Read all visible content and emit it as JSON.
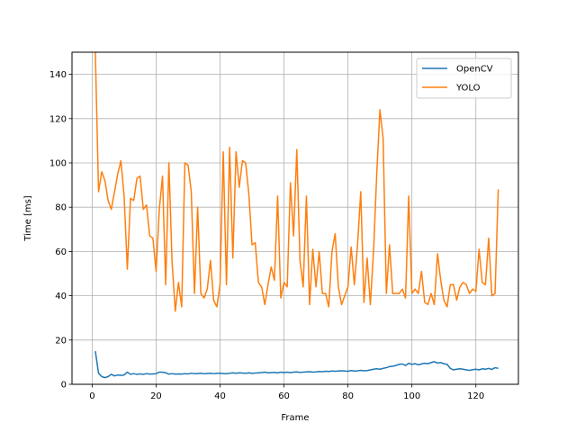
{
  "chart_data": {
    "type": "line",
    "title": "",
    "xlabel": "Frame",
    "ylabel": "Time [ms]",
    "xlim": [
      -6.3,
      133.3
    ],
    "ylim": [
      0,
      150
    ],
    "xticks": [
      0,
      20,
      40,
      60,
      80,
      100,
      120
    ],
    "yticks": [
      0,
      20,
      40,
      60,
      80,
      100,
      120,
      140
    ],
    "grid": true,
    "legend_position": "top-right",
    "x": [
      1,
      2,
      3,
      4,
      5,
      6,
      7,
      8,
      9,
      10,
      11,
      12,
      13,
      14,
      15,
      16,
      17,
      18,
      19,
      20,
      21,
      22,
      23,
      24,
      25,
      26,
      27,
      28,
      29,
      30,
      31,
      32,
      33,
      34,
      35,
      36,
      37,
      38,
      39,
      40,
      41,
      42,
      43,
      44,
      45,
      46,
      47,
      48,
      49,
      50,
      51,
      52,
      53,
      54,
      55,
      56,
      57,
      58,
      59,
      60,
      61,
      62,
      63,
      64,
      65,
      66,
      67,
      68,
      69,
      70,
      71,
      72,
      73,
      74,
      75,
      76,
      77,
      78,
      79,
      80,
      81,
      82,
      83,
      84,
      85,
      86,
      87,
      88,
      89,
      90,
      91,
      92,
      93,
      94,
      95,
      96,
      97,
      98,
      99,
      100,
      101,
      102,
      103,
      104,
      105,
      106,
      107,
      108,
      109,
      110,
      111,
      112,
      113,
      114,
      115,
      116,
      117,
      118,
      119,
      120,
      121,
      122,
      123,
      124,
      125,
      126,
      127
    ],
    "series": [
      {
        "name": "OpenCV",
        "color": "#1f77b4",
        "values": [
          15,
          5,
          3.5,
          3,
          3.5,
          4.5,
          3.8,
          4.2,
          4,
          4.2,
          5.5,
          4.5,
          4.8,
          4.5,
          4.7,
          4.5,
          4.8,
          4.6,
          4.7,
          4.8,
          5.5,
          5.5,
          5.2,
          4.6,
          4.8,
          4.6,
          4.7,
          4.6,
          4.8,
          4.7,
          5,
          4.8,
          4.9,
          5,
          4.8,
          4.9,
          5,
          4.8,
          5,
          5,
          4.9,
          4.8,
          5,
          5.2,
          5,
          5.2,
          5.1,
          5,
          5.2,
          5,
          5.1,
          5.2,
          5.3,
          5.5,
          5.2,
          5.3,
          5.4,
          5.2,
          5.5,
          5.3,
          5.5,
          5.3,
          5.5,
          5.6,
          5.4,
          5.5,
          5.6,
          5.7,
          5.5,
          5.6,
          5.8,
          5.7,
          5.9,
          5.8,
          6,
          5.9,
          6,
          6.1,
          6,
          5.9,
          6.2,
          6,
          6.1,
          6.3,
          6.1,
          6.2,
          6.5,
          6.8,
          7,
          6.8,
          7.2,
          7.5,
          8,
          8.2,
          8.5,
          9,
          9.2,
          8.5,
          9.5,
          9,
          9.3,
          8.8,
          9.2,
          9.5,
          9.3,
          9.8,
          10.2,
          9.6,
          9.8,
          9.3,
          9,
          7.2,
          6.5,
          6.8,
          7,
          6.8,
          6.5,
          6.3,
          6.6,
          6.8,
          6.5,
          7,
          6.8,
          7.2,
          6.7,
          7.5,
          7.2
        ]
      },
      {
        "name": "YOLO",
        "color": "#ff7f0e",
        "values": [
          150,
          87,
          96,
          92,
          83,
          79,
          87,
          95,
          101,
          85,
          52,
          84,
          83,
          93,
          94,
          79,
          81,
          67,
          66,
          51,
          79,
          94,
          45,
          100,
          55,
          33,
          46,
          35,
          100,
          99,
          87,
          41,
          80,
          41,
          39,
          43,
          56,
          38,
          35,
          45,
          105,
          45,
          107,
          57,
          105,
          89,
          101,
          100,
          86,
          63,
          64,
          46,
          44,
          36,
          45,
          53,
          47,
          85,
          39,
          46,
          44,
          91,
          67,
          106,
          56,
          44,
          85,
          36,
          61,
          44,
          60,
          41,
          41,
          35,
          60,
          68,
          44,
          36,
          40,
          44,
          62,
          45,
          63,
          87,
          37,
          57,
          36,
          60,
          95,
          124,
          111,
          41,
          63,
          41,
          41,
          41,
          43,
          39,
          85,
          41,
          43,
          41,
          51,
          37,
          36,
          41,
          36,
          59,
          47,
          38,
          35,
          45,
          45,
          38,
          44,
          46,
          45,
          41,
          43,
          42,
          61,
          46,
          45,
          66,
          40,
          41,
          88
        ]
      }
    ]
  }
}
